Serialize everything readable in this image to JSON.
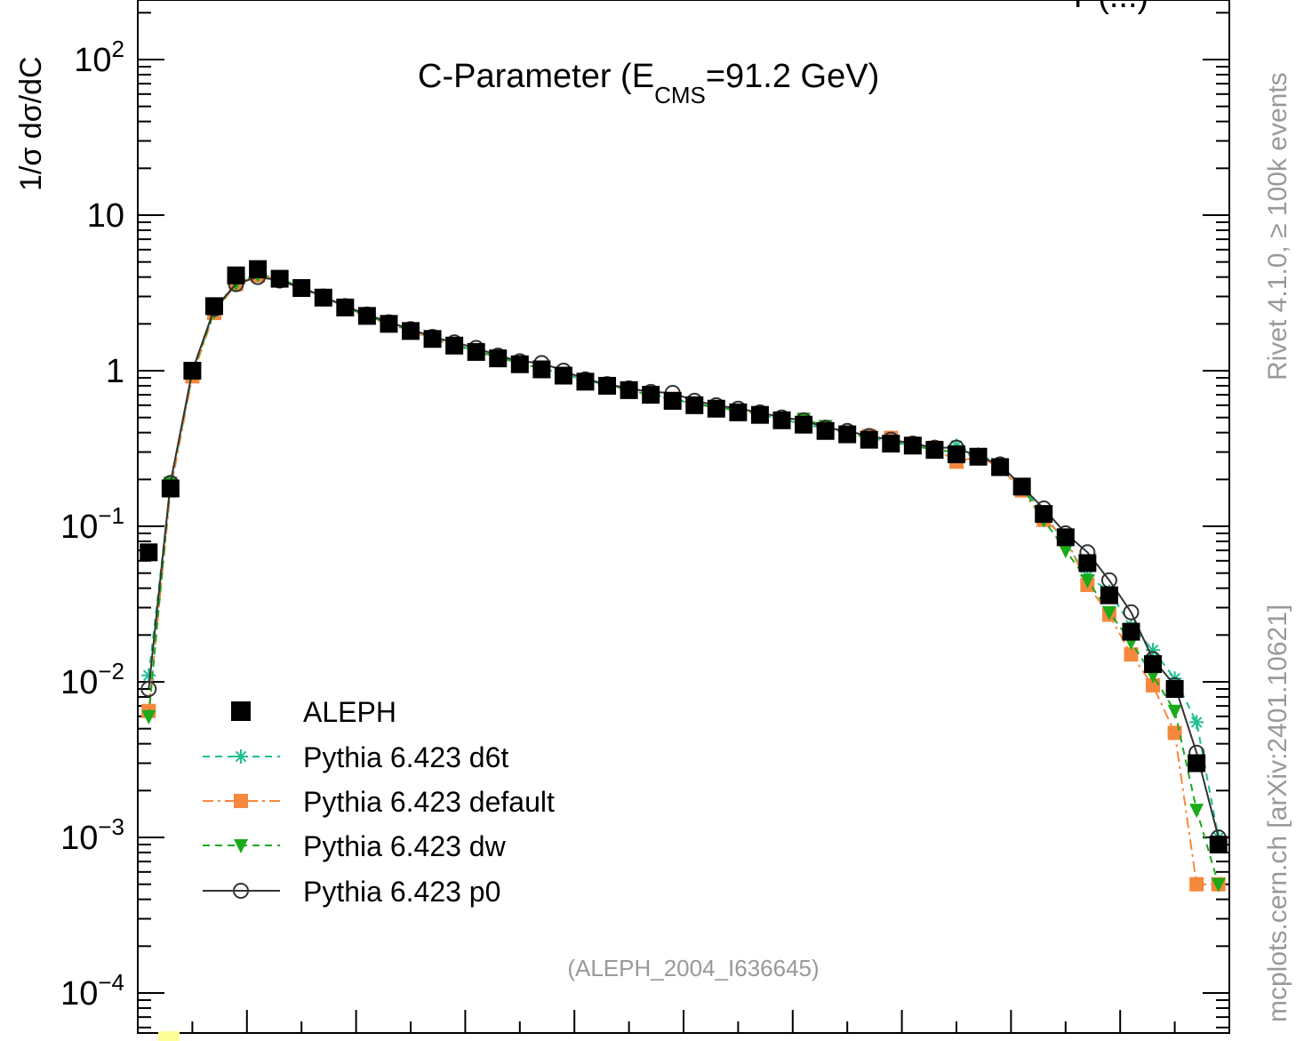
{
  "side_texts": {
    "rivet": "Rivet 4.1.0, ≥ 100k events",
    "mcplots": "mcplots.cern.ch [arXiv:2401.10621]"
  },
  "top_cut_text": "Y (...)",
  "reference": "(ALEPH_2004_I636645)",
  "chart_data": {
    "type": "scatter",
    "title": {
      "main": "C-Parameter (E",
      "sub": "CMS",
      "rest": "=91.2 GeV)"
    },
    "ylabel": "1/σ  dσ/dC",
    "xlabel": "",
    "yscale": "log",
    "xlim": [
      0,
      1
    ],
    "ylim": [
      6e-05,
      200
    ],
    "grid": false,
    "legend_position": "bottom-left",
    "y_ticks": [
      {
        "base": "10",
        "exp": "2",
        "value": 100
      },
      {
        "base": "10",
        "exp": "",
        "value": 10
      },
      {
        "base": "1",
        "exp": "",
        "value": 1
      },
      {
        "base": "10",
        "exp": "−1",
        "value": 0.1
      },
      {
        "base": "10",
        "exp": "−2",
        "value": 0.01
      },
      {
        "base": "10",
        "exp": "−3",
        "value": 0.001
      },
      {
        "base": "10",
        "exp": "−4",
        "value": 0.0001
      }
    ],
    "x": [
      0.01,
      0.03,
      0.05,
      0.07,
      0.09,
      0.11,
      0.13,
      0.15,
      0.17,
      0.19,
      0.21,
      0.23,
      0.25,
      0.27,
      0.29,
      0.31,
      0.33,
      0.35,
      0.37,
      0.39,
      0.41,
      0.43,
      0.45,
      0.47,
      0.49,
      0.51,
      0.53,
      0.55,
      0.57,
      0.59,
      0.61,
      0.63,
      0.65,
      0.67,
      0.69,
      0.71,
      0.73,
      0.75,
      0.77,
      0.79,
      0.81,
      0.83,
      0.85,
      0.87,
      0.89,
      0.91,
      0.93,
      0.95,
      0.97,
      0.99
    ],
    "series": [
      {
        "name": "ALEPH",
        "color": "#000000",
        "marker": "square-filled",
        "line": "none",
        "values": [
          0.068,
          0.175,
          1.0,
          2.6,
          4.1,
          4.5,
          3.9,
          3.4,
          2.95,
          2.55,
          2.25,
          2.0,
          1.8,
          1.6,
          1.45,
          1.32,
          1.2,
          1.1,
          1.02,
          0.93,
          0.85,
          0.8,
          0.75,
          0.7,
          0.64,
          0.6,
          0.57,
          0.54,
          0.52,
          0.48,
          0.45,
          0.41,
          0.39,
          0.36,
          0.34,
          0.33,
          0.31,
          0.29,
          0.28,
          0.24,
          0.18,
          0.12,
          0.085,
          0.058,
          0.036,
          0.021,
          0.013,
          0.009,
          0.003,
          0.0009
        ]
      },
      {
        "name": "Pythia 6.423 d6t",
        "color": "#1fbf8f",
        "marker": "star",
        "line": "dashed",
        "values": [
          0.011,
          0.18,
          0.95,
          2.45,
          3.7,
          4.2,
          3.9,
          3.45,
          2.98,
          2.6,
          2.28,
          2.02,
          1.82,
          1.64,
          1.48,
          1.34,
          1.22,
          1.12,
          1.04,
          0.95,
          0.87,
          0.81,
          0.76,
          0.71,
          0.66,
          0.61,
          0.58,
          0.55,
          0.52,
          0.49,
          0.45,
          0.43,
          0.4,
          0.37,
          0.35,
          0.33,
          0.32,
          0.33,
          0.29,
          0.25,
          0.18,
          0.12,
          0.078,
          0.048,
          0.038,
          0.023,
          0.016,
          0.0105,
          0.0055,
          0.001
        ]
      },
      {
        "name": "Pythia 6.423 default",
        "color": "#f5883d",
        "marker": "square-filled",
        "line": "dashdot",
        "values": [
          0.0065,
          0.17,
          0.92,
          2.35,
          3.6,
          4.1,
          3.85,
          3.4,
          2.95,
          2.55,
          2.22,
          2.0,
          1.8,
          1.6,
          1.45,
          1.32,
          1.2,
          1.1,
          1.03,
          0.94,
          0.85,
          0.8,
          0.74,
          0.69,
          0.66,
          0.61,
          0.58,
          0.55,
          0.52,
          0.49,
          0.45,
          0.42,
          0.4,
          0.38,
          0.37,
          0.34,
          0.32,
          0.26,
          0.28,
          0.24,
          0.17,
          0.11,
          0.085,
          0.042,
          0.027,
          0.015,
          0.0095,
          0.0047,
          0.0005,
          0.0005
        ]
      },
      {
        "name": "Pythia 6.423 dw",
        "color": "#1aaa1a",
        "marker": "triangle-down-filled",
        "line": "dashed",
        "values": [
          0.006,
          0.19,
          0.98,
          2.4,
          3.65,
          4.15,
          3.9,
          3.45,
          2.98,
          2.58,
          2.25,
          2.02,
          1.82,
          1.62,
          1.46,
          1.34,
          1.22,
          1.12,
          1.03,
          0.95,
          0.88,
          0.82,
          0.75,
          0.7,
          0.66,
          0.62,
          0.58,
          0.56,
          0.53,
          0.49,
          0.49,
          0.44,
          0.4,
          0.37,
          0.35,
          0.33,
          0.31,
          0.3,
          0.28,
          0.25,
          0.18,
          0.11,
          0.07,
          0.045,
          0.028,
          0.018,
          0.011,
          0.0065,
          0.0015,
          0.0005
        ]
      },
      {
        "name": "Pythia 6.423 p0",
        "color": "#333333",
        "marker": "circle-open",
        "line": "solid",
        "values": [
          0.009,
          0.19,
          1.0,
          2.5,
          3.6,
          4.0,
          3.8,
          3.4,
          3.0,
          2.6,
          2.3,
          2.05,
          1.85,
          1.65,
          1.52,
          1.4,
          1.25,
          1.15,
          1.12,
          1.0,
          0.88,
          0.82,
          0.77,
          0.73,
          0.72,
          0.64,
          0.6,
          0.57,
          0.54,
          0.5,
          0.48,
          0.43,
          0.41,
          0.38,
          0.36,
          0.34,
          0.32,
          0.32,
          0.28,
          0.25,
          0.18,
          0.13,
          0.09,
          0.068,
          0.045,
          0.028,
          0.014,
          0.0095,
          0.0035,
          0.001
        ]
      }
    ]
  }
}
